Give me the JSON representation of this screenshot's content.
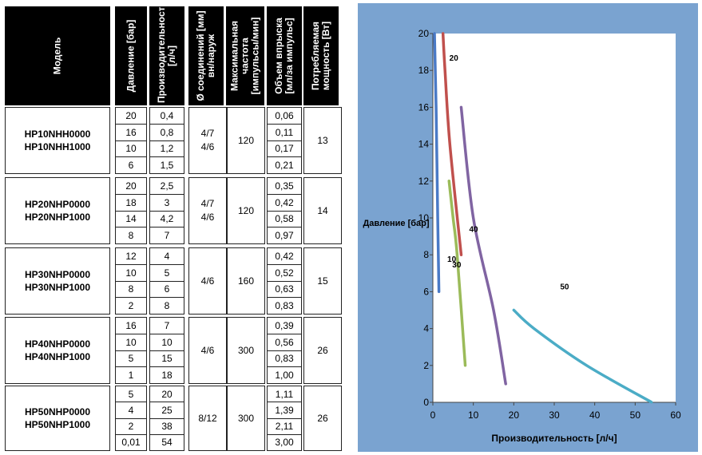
{
  "table": {
    "headers": {
      "model": "Модель",
      "pressure": "Давление [бар]",
      "flow": "Производительность [л/ч]",
      "diameter": "Ø соединений [мм] вн/наруж",
      "frequency": "Максимальная частота [импульсы/мин]",
      "volume": "Объем впрыска [мл/за импульс]",
      "power": "Потребляемая мощность [Вт]"
    },
    "groups": [
      {
        "model_1": "HP10NHH0000",
        "model_2": "HP10NHH1000",
        "pressure": [
          "20",
          "16",
          "10",
          "6"
        ],
        "flow": [
          "0,4",
          "0,8",
          "1,2",
          "1,5"
        ],
        "diameter_1": "4/7",
        "diameter_2": "4/6",
        "frequency": "120",
        "volume": [
          "0,06",
          "0,11",
          "0,17",
          "0,21"
        ],
        "power": "13"
      },
      {
        "model_1": "HP20NHP0000",
        "model_2": "HP20NHP1000",
        "pressure": [
          "20",
          "18",
          "14",
          "8"
        ],
        "flow": [
          "2,5",
          "3",
          "4,2",
          "7"
        ],
        "diameter_1": "4/7",
        "diameter_2": "4/6",
        "frequency": "120",
        "volume": [
          "0,35",
          "0,42",
          "0,58",
          "0,97"
        ],
        "power": "14"
      },
      {
        "model_1": "HP30NHP0000",
        "model_2": "HP30NHP1000",
        "pressure": [
          "12",
          "10",
          "8",
          "2"
        ],
        "flow": [
          "4",
          "5",
          "6",
          "8"
        ],
        "diameter_1": "4/6",
        "diameter_2": "",
        "frequency": "160",
        "volume": [
          "0,42",
          "0,52",
          "0,63",
          "0,83"
        ],
        "power": "15"
      },
      {
        "model_1": "HP40NHP0000",
        "model_2": "HP40NHP1000",
        "pressure": [
          "16",
          "10",
          "5",
          "1"
        ],
        "flow": [
          "7",
          "10",
          "15",
          "18"
        ],
        "diameter_1": "4/6",
        "diameter_2": "",
        "frequency": "300",
        "volume": [
          "0,39",
          "0,56",
          "0,83",
          "1,00"
        ],
        "power": "26"
      },
      {
        "model_1": "HP50NHP0000",
        "model_2": "HP50NHP1000",
        "pressure": [
          "5",
          "4",
          "2",
          "0,01"
        ],
        "flow": [
          "20",
          "25",
          "38",
          "54"
        ],
        "diameter_1": "8/12",
        "diameter_2": "",
        "frequency": "300",
        "volume": [
          "1,11",
          "1,39",
          "2,11",
          "3,00"
        ],
        "power": "26"
      }
    ]
  },
  "colors": {
    "chart_background": "#7aa3d0",
    "plot_background": "#ffffff",
    "series_10": "#4a7ac6",
    "series_20": "#c0504d",
    "series_30": "#9bbb59",
    "series_40": "#8064a2",
    "series_50": "#4bacc6"
  },
  "chart_data": {
    "type": "line",
    "xlabel": "Производительность [л/ч]",
    "ylabel": "Давление [бар]",
    "xlim": [
      0,
      60
    ],
    "ylim": [
      0,
      20
    ],
    "xticks": [
      "0",
      "10",
      "20",
      "30",
      "40",
      "50",
      "60"
    ],
    "yticks": [
      "0",
      "2",
      "4",
      "6",
      "8",
      "10",
      "12",
      "14",
      "16",
      "18",
      "20"
    ],
    "grid": false,
    "series": [
      {
        "name": "10",
        "x": [
          0.4,
          0.8,
          1.2,
          1.5
        ],
        "y": [
          20,
          16,
          10,
          6
        ]
      },
      {
        "name": "20",
        "x": [
          2.5,
          3,
          4.2,
          7
        ],
        "y": [
          20,
          18,
          14,
          8
        ]
      },
      {
        "name": "30",
        "x": [
          4,
          5,
          6,
          8
        ],
        "y": [
          12,
          10,
          8,
          2
        ]
      },
      {
        "name": "40",
        "x": [
          7,
          10,
          15,
          18
        ],
        "y": [
          16,
          10,
          5,
          1
        ]
      },
      {
        "name": "50",
        "x": [
          20,
          25,
          38,
          54
        ],
        "y": [
          5,
          4,
          2,
          0.01
        ]
      }
    ]
  }
}
